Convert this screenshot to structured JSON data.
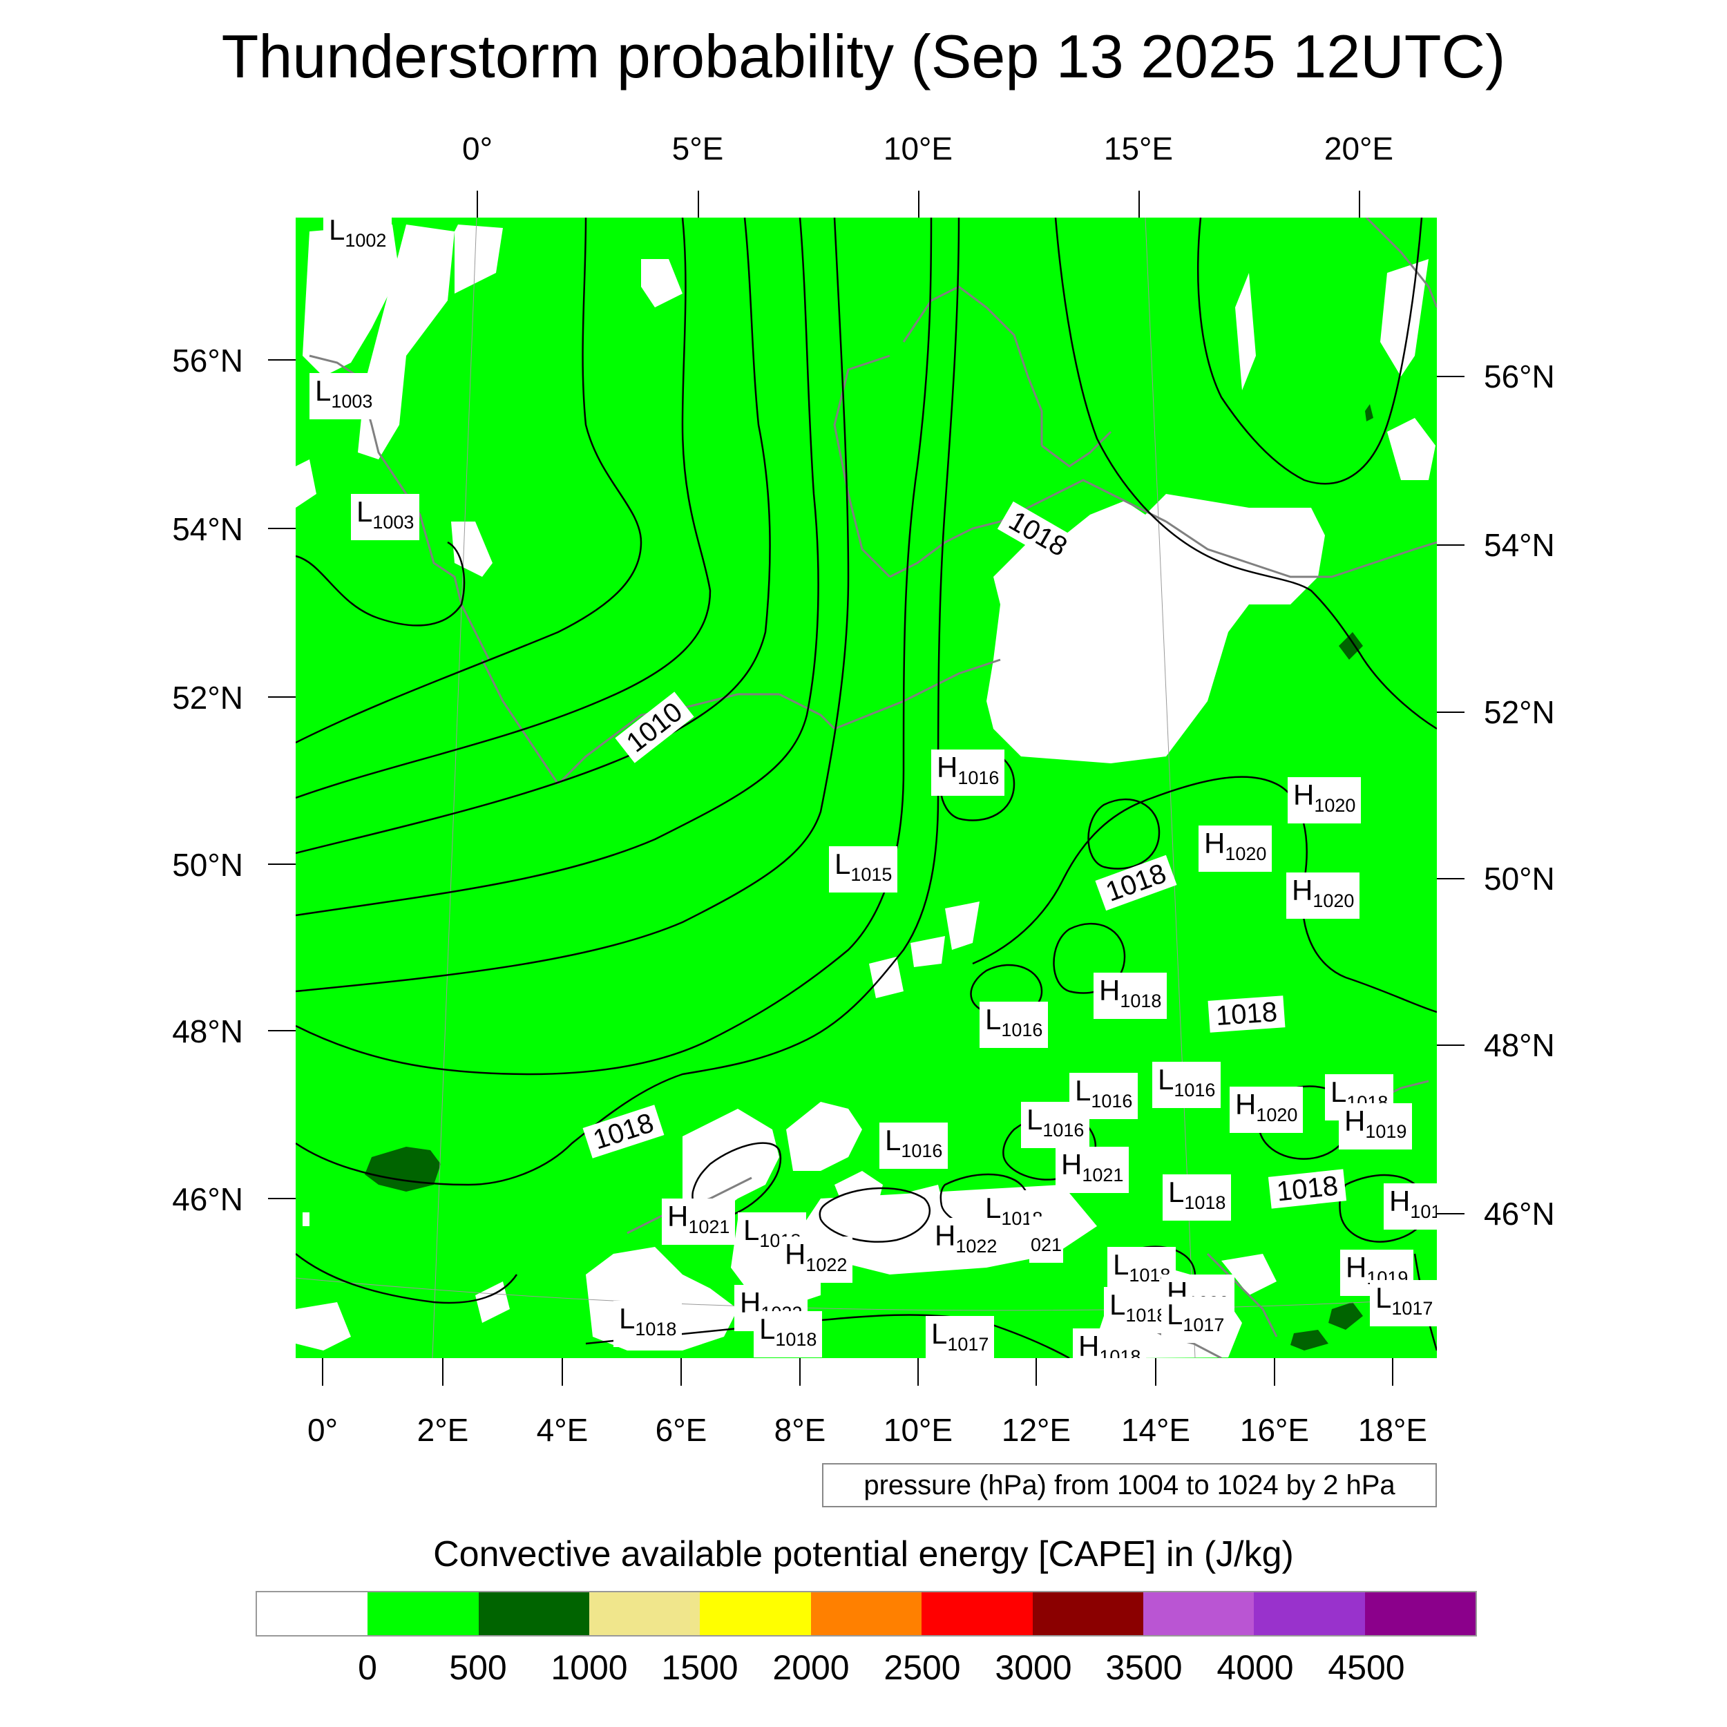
{
  "title": "Thunderstorm probability (Sep 13 2025 12UTC)",
  "top_lon_labels": [
    "0°",
    "5°E",
    "10°E",
    "15°E",
    "20°E"
  ],
  "bottom_lon_labels": [
    "0°",
    "2°E",
    "4°E",
    "6°E",
    "8°E",
    "10°E",
    "12°E",
    "14°E",
    "16°E",
    "18°E"
  ],
  "left_lat_labels": [
    "56°N",
    "54°N",
    "52°N",
    "50°N",
    "48°N",
    "46°N"
  ],
  "right_lat_labels": [
    "56°N",
    "54°N",
    "52°N",
    "50°N",
    "48°N",
    "46°N"
  ],
  "pressure_centers": [
    {
      "type": "L",
      "value": "1002"
    },
    {
      "type": "L",
      "value": "1003"
    },
    {
      "type": "L",
      "value": "1003"
    },
    {
      "type": "H",
      "value": "1016"
    },
    {
      "type": "L",
      "value": "1015"
    },
    {
      "type": "H",
      "value": "1020"
    },
    {
      "type": "H",
      "value": "1020"
    },
    {
      "type": "H",
      "value": "1020"
    },
    {
      "type": "H",
      "value": "1018"
    },
    {
      "type": "L",
      "value": "1016"
    },
    {
      "type": "L",
      "value": "1016"
    },
    {
      "type": "L",
      "value": "1016"
    },
    {
      "type": "H",
      "value": "1020"
    },
    {
      "type": "L",
      "value": "1018"
    },
    {
      "type": "H",
      "value": "1019"
    },
    {
      "type": "L",
      "value": "1016"
    },
    {
      "type": "L",
      "value": "1016"
    },
    {
      "type": "H",
      "value": "1021"
    },
    {
      "type": "L",
      "value": "1018"
    },
    {
      "type": "H",
      "value": "1021"
    },
    {
      "type": "L",
      "value": "1018"
    },
    {
      "type": "L",
      "value": "1018"
    },
    {
      "type": "H",
      "value": "1022"
    },
    {
      "type": "H",
      "value": "1022"
    },
    {
      "type": "L",
      "value": "1018"
    },
    {
      "type": "L",
      "value": "1018"
    },
    {
      "type": "H",
      "value": "1020"
    },
    {
      "type": "H",
      "value": "1019"
    },
    {
      "type": "L",
      "value": "1017"
    },
    {
      "type": "L",
      "value": "1018"
    },
    {
      "type": "H",
      "value": "1022"
    },
    {
      "type": "L",
      "value": "1018"
    },
    {
      "type": "L",
      "value": "1017"
    },
    {
      "type": "H",
      "value": "1018"
    },
    {
      "type": "L",
      "value": "1017"
    },
    {
      "type": "H",
      "value": "101"
    },
    {
      "type": "",
      "value": "021"
    }
  ],
  "contour_labels": [
    "1010",
    "1018",
    "1018",
    "1018",
    "1018",
    "1018"
  ],
  "contour_info": "pressure (hPa) from 1004 to 1024 by 2 hPa",
  "colorbar": {
    "title": "Convective available potential energy [CAPE] in (J/kg)",
    "colors": [
      "#ffffff",
      "#00ff00",
      "#006400",
      "#f0e68c",
      "#ffff00",
      "#ff8000",
      "#ff0000",
      "#8b0000",
      "#ba55d3",
      "#9932cc",
      "#8b008b"
    ],
    "labels": [
      "0",
      "500",
      "1000",
      "1500",
      "2000",
      "2500",
      "3000",
      "3500",
      "4000",
      "4500"
    ]
  },
  "colors": {
    "cape_0_500": "#00ff00",
    "cape_500_1000": "#006400",
    "no_cape": "#ffffff",
    "coastline": "#808080",
    "isobar": "#000000"
  }
}
